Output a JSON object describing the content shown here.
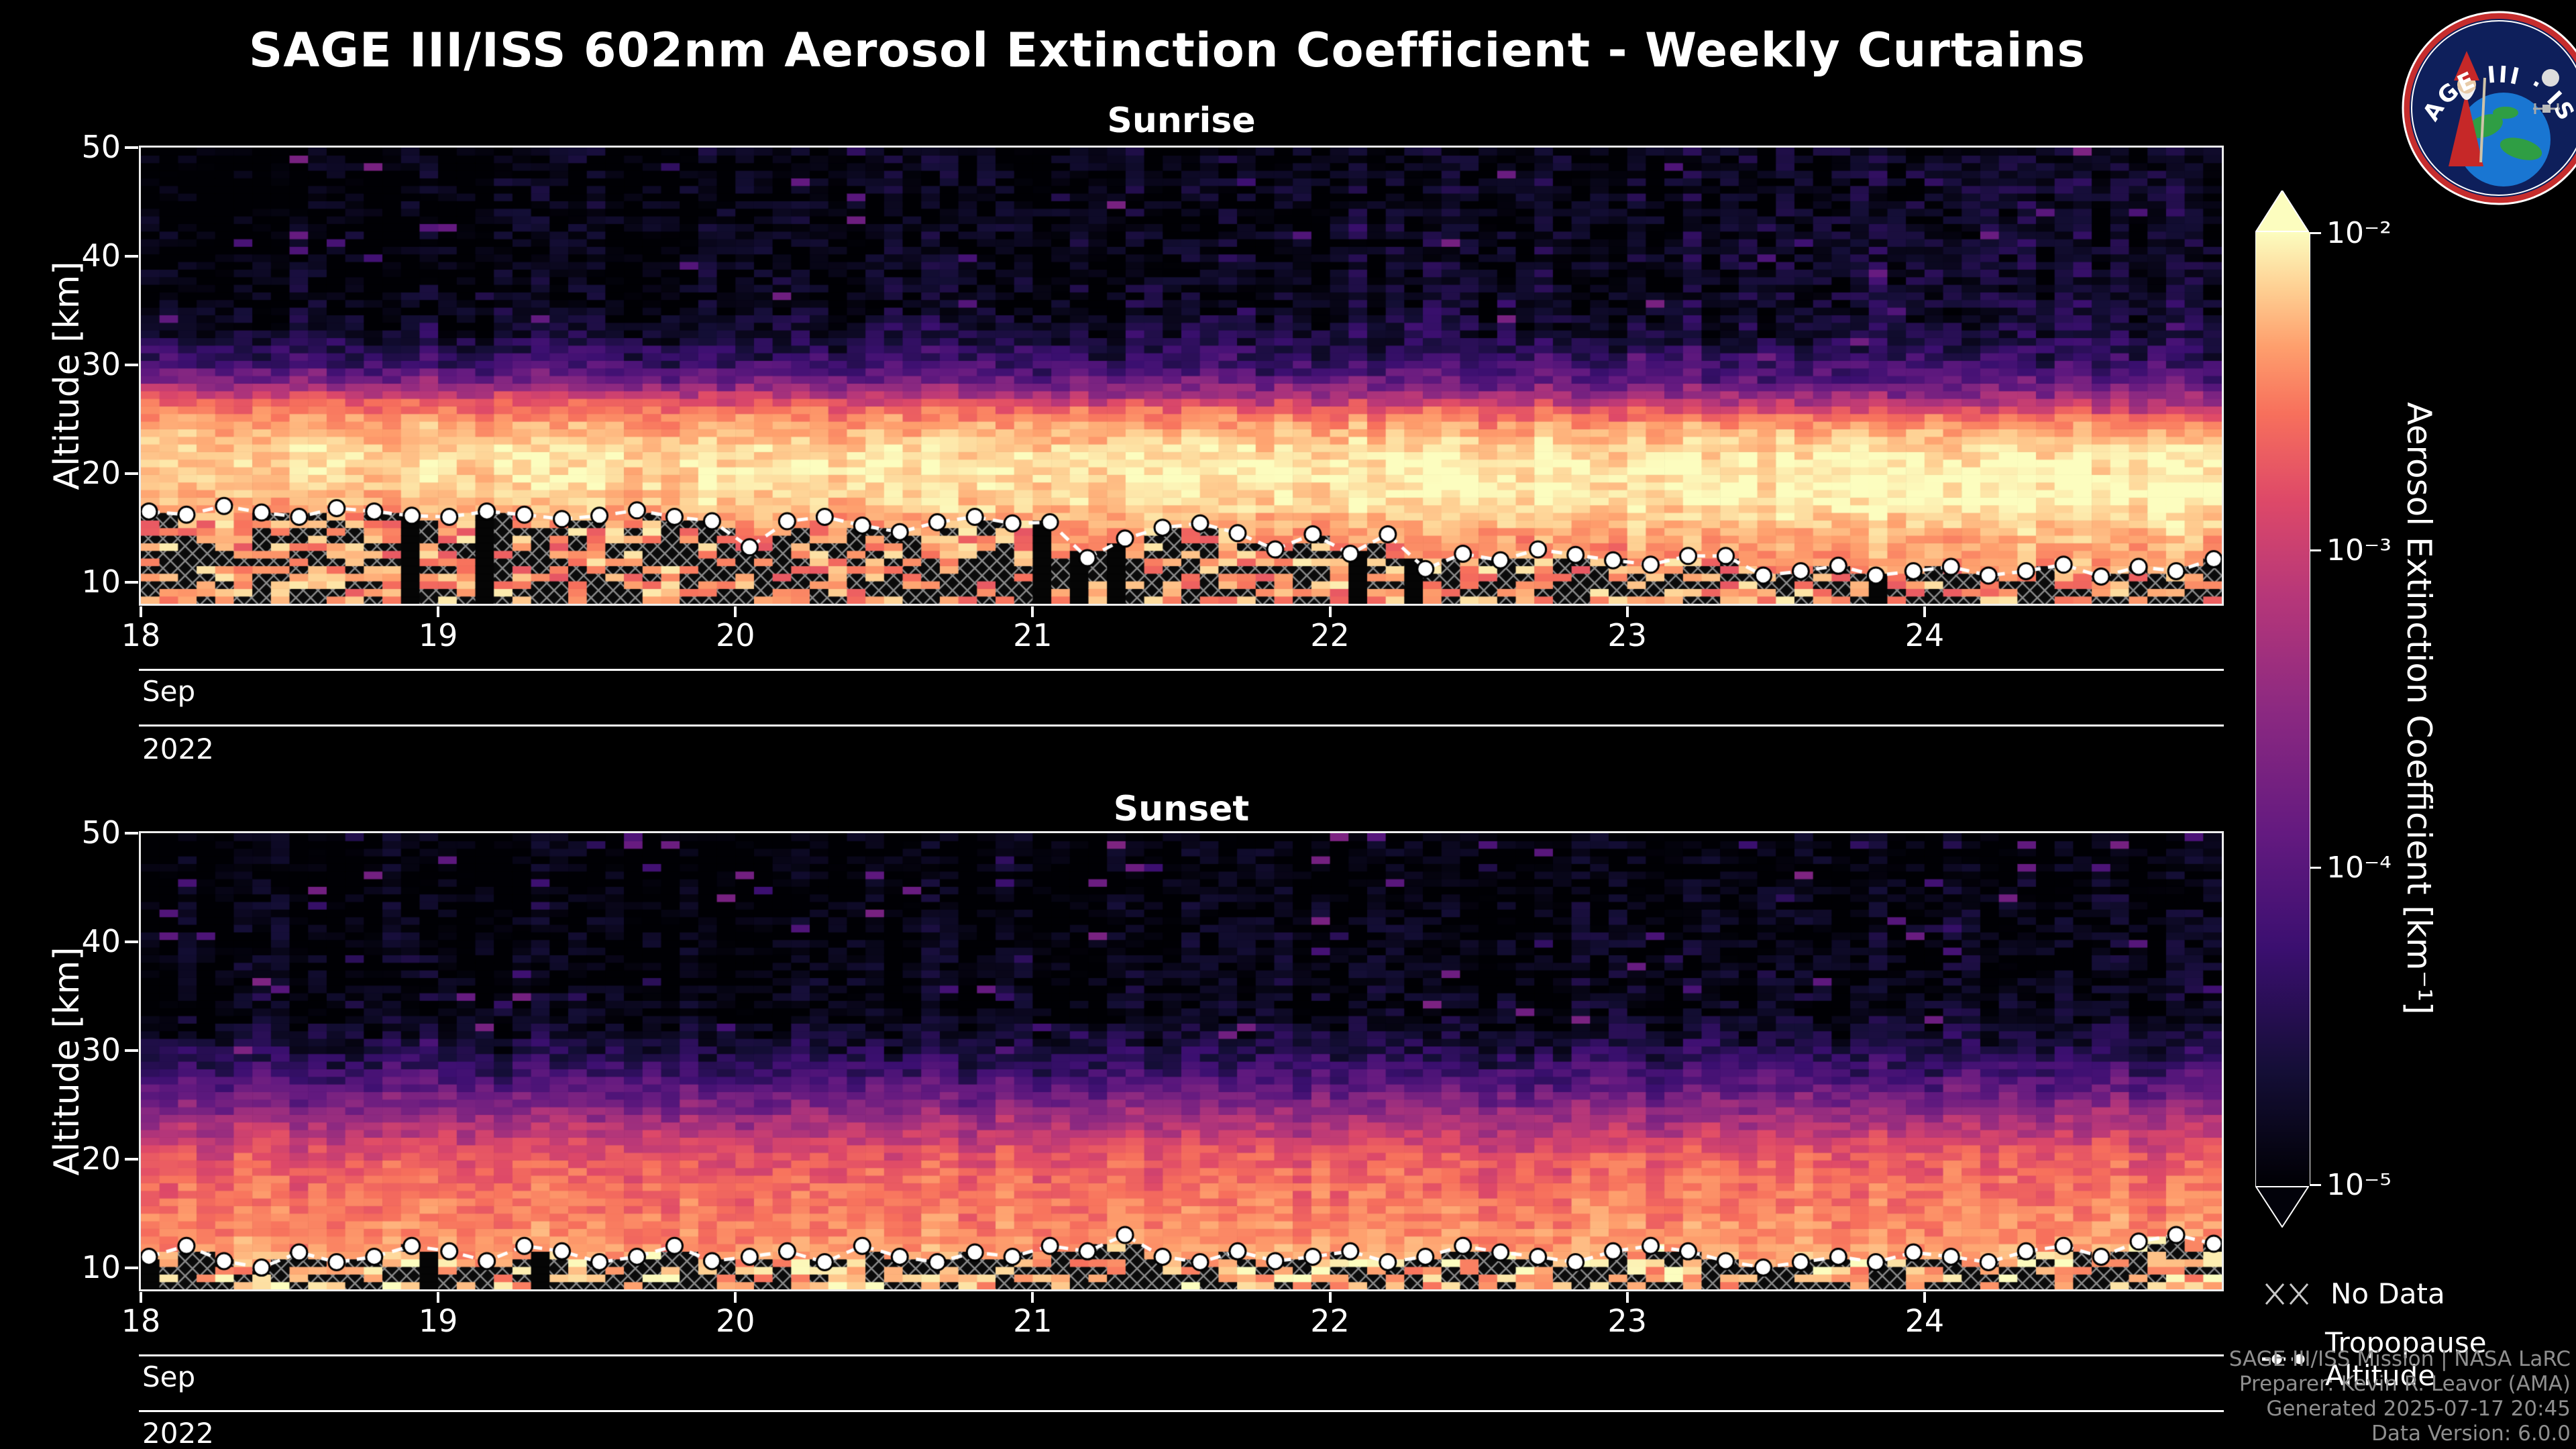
{
  "title": "SAGE III/ISS 602nm Aerosol Extinction Coefficient - Weekly Curtains",
  "logo": {
    "title": "SAGE III · ISS"
  },
  "colorbar": {
    "label": "Aerosol Extinction Coefficient [km⁻¹]",
    "tick_labels": [
      "10⁻²",
      "10⁻³",
      "10⁻⁴",
      "10⁻⁵"
    ],
    "scale": "log",
    "min": 1e-05,
    "max": 0.01,
    "colormap": [
      "#000004",
      "#140e36",
      "#3b0f70",
      "#641a80",
      "#8c2981",
      "#b73779",
      "#de4968",
      "#f7705c",
      "#fe9f6d",
      "#fecf92",
      "#fcfdbf"
    ]
  },
  "legend": {
    "no_data": "No Data",
    "tropopause": "Tropopause Altitude"
  },
  "credits": [
    "SAGE III/ISS Mission | NASA LaRC",
    "Preparer: Kevin R. Leavor (AMA)",
    "Generated 2025-07-17 20:45",
    "Data Version: 6.0.0"
  ],
  "chart_data": [
    {
      "type": "heatmap",
      "title": "Sunrise",
      "ylabel": "Altitude [km]",
      "yticks": [
        10,
        20,
        30,
        40,
        50
      ],
      "ylim": [
        8,
        50
      ],
      "xticks_days": [
        "18",
        "19",
        "20",
        "21",
        "22",
        "23",
        "24"
      ],
      "month": "Sep",
      "year": "2022",
      "value_units": "km⁻¹",
      "value_scale": "log10",
      "vmin": 1e-05,
      "vmax": 0.01,
      "mean_profile_log10": [
        [
          8,
          -2.7
        ],
        [
          12,
          -2.9
        ],
        [
          15,
          -2.8
        ],
        [
          17,
          -2.5
        ],
        [
          19,
          -2.3
        ],
        [
          21,
          -2.25
        ],
        [
          23,
          -2.35
        ],
        [
          25,
          -2.7
        ],
        [
          26.5,
          -3.1
        ],
        [
          28,
          -3.8
        ],
        [
          30,
          -4.4
        ],
        [
          33,
          -4.8
        ],
        [
          36,
          -5.0
        ],
        [
          50,
          -5.05
        ]
      ],
      "tropopause_km": [
        16.5,
        16.2,
        17,
        16.4,
        16,
        16.8,
        16.5,
        16.1,
        16,
        16.5,
        16.2,
        15.8,
        16.1,
        16.6,
        16,
        15.6,
        13.2,
        15.6,
        16,
        15.2,
        14.6,
        15.5,
        16,
        15.4,
        15.5,
        12.2,
        14,
        15,
        15.4,
        14.5,
        13,
        14.4,
        12.6,
        14.4,
        11.2,
        12.6,
        12,
        13,
        12.5,
        12,
        11.6,
        12.4,
        12.4,
        10.6,
        11,
        11.5,
        10.6,
        11,
        11.4,
        10.6,
        11,
        11.6,
        10.5,
        11.4,
        11,
        12.1
      ],
      "render": {
        "columns": 112,
        "noise": 0.5,
        "below_base": -2.6,
        "hatch_p": 0.45,
        "black_col_p": 0.06,
        "drift_km": 2,
        "brighten": 0.25,
        "speckle_above": 29
      }
    },
    {
      "type": "heatmap",
      "title": "Sunset",
      "ylabel": "Altitude [km]",
      "yticks": [
        10,
        20,
        30,
        40,
        50
      ],
      "ylim": [
        8,
        50
      ],
      "xticks_days": [
        "18",
        "19",
        "20",
        "21",
        "22",
        "23",
        "24"
      ],
      "month": "Sep",
      "year": "2022",
      "value_units": "km⁻¹",
      "value_scale": "log10",
      "vmin": 1e-05,
      "vmax": 0.01,
      "mean_profile_log10": [
        [
          8,
          -2.45
        ],
        [
          10,
          -2.55
        ],
        [
          12,
          -2.7
        ],
        [
          14,
          -2.8
        ],
        [
          16,
          -2.9
        ],
        [
          18,
          -3.0
        ],
        [
          20,
          -3.15
        ],
        [
          22,
          -3.45
        ],
        [
          24,
          -3.8
        ],
        [
          26,
          -4.15
        ],
        [
          28,
          -4.45
        ],
        [
          30,
          -4.7
        ],
        [
          33,
          -4.95
        ],
        [
          50,
          -5.05
        ]
      ],
      "tropopause_km": [
        11,
        12,
        10.6,
        10,
        11.4,
        10.5,
        11,
        12,
        11.5,
        10.6,
        12,
        11.5,
        10.5,
        11,
        12,
        10.6,
        11,
        11.5,
        10.5,
        12,
        11,
        10.5,
        11.4,
        11,
        12,
        11.5,
        13,
        11,
        10.5,
        11.5,
        10.6,
        11,
        11.5,
        10.5,
        11,
        12,
        11.4,
        11,
        10.5,
        11.5,
        12,
        11.5,
        10.6,
        10,
        10.5,
        11,
        10.5,
        11.4,
        11,
        10.5,
        11.5,
        12,
        11,
        12.4,
        13,
        12.2
      ],
      "render": {
        "columns": 112,
        "noise": 0.45,
        "below_base": -2.4,
        "hatch_p": 0.5,
        "black_col_p": 0.05,
        "drift_km": 0,
        "brighten": 0.05,
        "speckle_above": 29
      }
    }
  ]
}
